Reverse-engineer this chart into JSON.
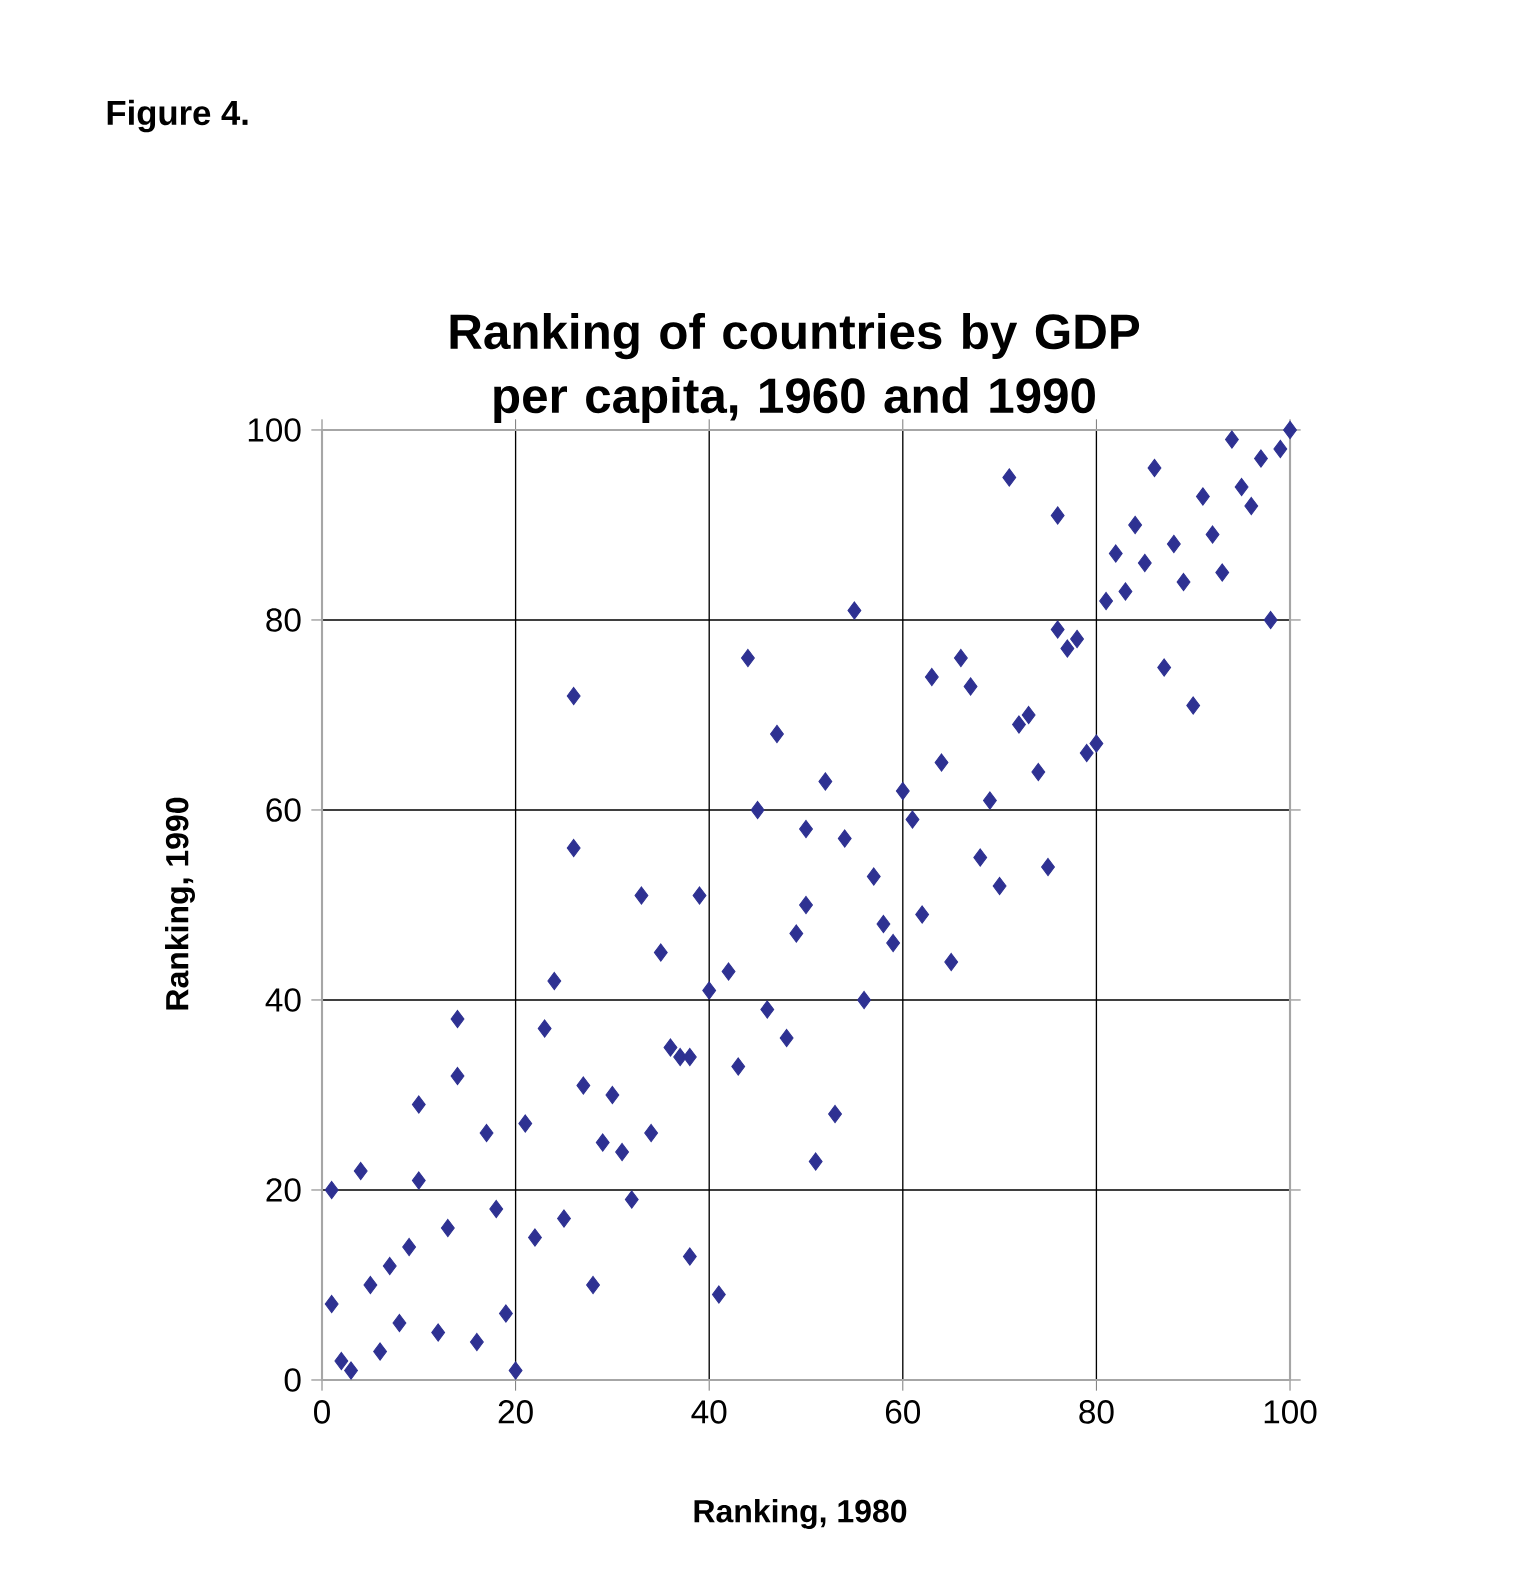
{
  "chart_data": {
    "type": "scatter",
    "title": "Ranking of countries by GDP per capita, 1960 and 1990",
    "xlabel": "Ranking, 1980",
    "ylabel": "Ranking, 1990",
    "annotations": [
      "Figure 4."
    ],
    "x": [
      1,
      1,
      2,
      3,
      4,
      5,
      6,
      7,
      8,
      9,
      10,
      10,
      12,
      13,
      14,
      14,
      16,
      17,
      18,
      19,
      20,
      21,
      22,
      23,
      24,
      25,
      26,
      26,
      27,
      28,
      29,
      30,
      31,
      32,
      33,
      34,
      35,
      36,
      37,
      38,
      38,
      39,
      40,
      41,
      42,
      43,
      44,
      45,
      46,
      47,
      48,
      49,
      50,
      50,
      51,
      52,
      53,
      54,
      55,
      56,
      57,
      58,
      59,
      60,
      61,
      62,
      63,
      64,
      65,
      66,
      67,
      68,
      69,
      70,
      71,
      72,
      73,
      74,
      75,
      76,
      76,
      77,
      78,
      79,
      80,
      81,
      82,
      83,
      84,
      85,
      86,
      87,
      88,
      89,
      90,
      91,
      92,
      93,
      94,
      95,
      96,
      97,
      98,
      99,
      100
    ],
    "values": [
      20,
      8,
      2,
      1,
      22,
      10,
      3,
      12,
      6,
      14,
      29,
      21,
      5,
      16,
      38,
      32,
      4,
      26,
      18,
      7,
      1,
      27,
      15,
      37,
      42,
      17,
      72,
      56,
      31,
      10,
      25,
      30,
      24,
      19,
      51,
      26,
      45,
      35,
      34,
      34,
      13,
      51,
      41,
      9,
      43,
      33,
      76,
      60,
      39,
      68,
      36,
      47,
      58,
      50,
      23,
      63,
      28,
      57,
      81,
      40,
      53,
      48,
      46,
      62,
      59,
      49,
      74,
      65,
      44,
      76,
      73,
      55,
      61,
      52,
      95,
      69,
      70,
      64,
      54,
      91,
      79,
      77,
      78,
      66,
      67,
      82,
      87,
      83,
      90,
      86,
      96,
      75,
      88,
      84,
      71,
      93,
      89,
      85,
      99,
      94,
      92,
      97,
      80,
      98,
      100
    ],
    "color": "#2e3192",
    "marker": "diamond",
    "grid": true,
    "xlim": [
      0,
      100
    ],
    "ylim": [
      0,
      100
    ],
    "xticks": [
      0,
      20,
      40,
      60,
      80,
      100
    ],
    "yticks": [
      0,
      20,
      40,
      60,
      80,
      100
    ]
  }
}
